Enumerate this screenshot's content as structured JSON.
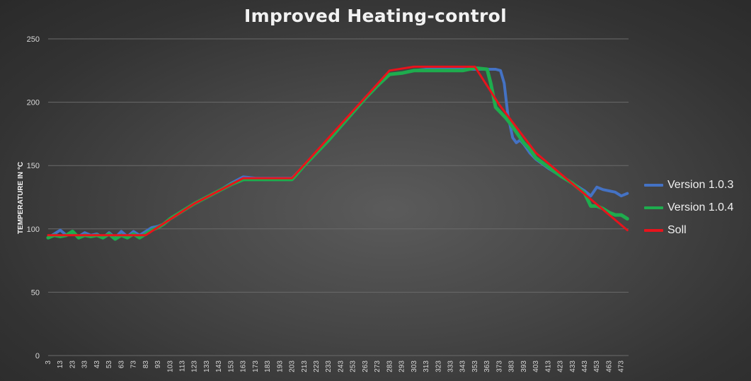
{
  "chart_data": {
    "type": "line",
    "title": "Improved Heating-control",
    "xlabel": "",
    "ylabel": "TEMPERATURE IN °C",
    "ylim": [
      0,
      250
    ],
    "yticks": [
      0,
      50,
      100,
      150,
      200,
      250
    ],
    "xlim": [
      3,
      479
    ],
    "xticks": [
      3,
      13,
      23,
      33,
      43,
      53,
      63,
      73,
      83,
      93,
      103,
      113,
      123,
      133,
      143,
      153,
      163,
      173,
      183,
      193,
      203,
      213,
      223,
      233,
      243,
      253,
      263,
      273,
      283,
      293,
      303,
      313,
      323,
      333,
      343,
      353,
      363,
      373,
      383,
      393,
      403,
      413,
      423,
      433,
      443,
      453,
      463,
      473
    ],
    "grid": true,
    "legend_position": "right",
    "series": [
      {
        "name": "Version 1.0.3",
        "color": "#4472c4",
        "points": [
          [
            3,
            93
          ],
          [
            8,
            96
          ],
          [
            13,
            99
          ],
          [
            18,
            95
          ],
          [
            23,
            97
          ],
          [
            28,
            94
          ],
          [
            33,
            97
          ],
          [
            38,
            95
          ],
          [
            43,
            96
          ],
          [
            48,
            93
          ],
          [
            53,
            97
          ],
          [
            58,
            93
          ],
          [
            63,
            98
          ],
          [
            68,
            94
          ],
          [
            73,
            98
          ],
          [
            78,
            95
          ],
          [
            83,
            98
          ],
          [
            88,
            101
          ],
          [
            93,
            102
          ],
          [
            98,
            104
          ],
          [
            103,
            108
          ],
          [
            113,
            114
          ],
          [
            123,
            120
          ],
          [
            133,
            125
          ],
          [
            143,
            130
          ],
          [
            153,
            136
          ],
          [
            163,
            141
          ],
          [
            173,
            140
          ],
          [
            183,
            140
          ],
          [
            193,
            140
          ],
          [
            203,
            140
          ],
          [
            213,
            150
          ],
          [
            223,
            160
          ],
          [
            233,
            170
          ],
          [
            243,
            181
          ],
          [
            253,
            192
          ],
          [
            263,
            203
          ],
          [
            273,
            213
          ],
          [
            283,
            222
          ],
          [
            293,
            223
          ],
          [
            303,
            225
          ],
          [
            313,
            226
          ],
          [
            323,
            226
          ],
          [
            333,
            226
          ],
          [
            343,
            226
          ],
          [
            353,
            226
          ],
          [
            363,
            226
          ],
          [
            370,
            226
          ],
          [
            374,
            225
          ],
          [
            377,
            215
          ],
          [
            380,
            190
          ],
          [
            384,
            172
          ],
          [
            387,
            168
          ],
          [
            390,
            170
          ],
          [
            393,
            167
          ],
          [
            398,
            160
          ],
          [
            403,
            155
          ],
          [
            413,
            148
          ],
          [
            423,
            142
          ],
          [
            433,
            136
          ],
          [
            443,
            130
          ],
          [
            448,
            126
          ],
          [
            453,
            133
          ],
          [
            458,
            131
          ],
          [
            463,
            130
          ],
          [
            468,
            129
          ],
          [
            473,
            126
          ],
          [
            478,
            128
          ]
        ]
      },
      {
        "name": "Version 1.0.4",
        "color": "#1eac4e",
        "points": [
          [
            3,
            93
          ],
          [
            8,
            95
          ],
          [
            13,
            94
          ],
          [
            18,
            95
          ],
          [
            23,
            98
          ],
          [
            28,
            93
          ],
          [
            33,
            95
          ],
          [
            38,
            94
          ],
          [
            43,
            95
          ],
          [
            48,
            93
          ],
          [
            53,
            96
          ],
          [
            58,
            92
          ],
          [
            63,
            95
          ],
          [
            68,
            93
          ],
          [
            73,
            96
          ],
          [
            78,
            93
          ],
          [
            83,
            96
          ],
          [
            88,
            99
          ],
          [
            93,
            101
          ],
          [
            98,
            104
          ],
          [
            103,
            108
          ],
          [
            113,
            114
          ],
          [
            123,
            120
          ],
          [
            133,
            125
          ],
          [
            143,
            130
          ],
          [
            153,
            135
          ],
          [
            163,
            139
          ],
          [
            173,
            139
          ],
          [
            183,
            139
          ],
          [
            193,
            139
          ],
          [
            203,
            139
          ],
          [
            213,
            150
          ],
          [
            223,
            160
          ],
          [
            233,
            170
          ],
          [
            243,
            181
          ],
          [
            253,
            192
          ],
          [
            263,
            203
          ],
          [
            273,
            213
          ],
          [
            283,
            222
          ],
          [
            293,
            223
          ],
          [
            303,
            225
          ],
          [
            313,
            225
          ],
          [
            323,
            225
          ],
          [
            333,
            225
          ],
          [
            343,
            225
          ],
          [
            353,
            227
          ],
          [
            363,
            226
          ],
          [
            366,
            215
          ],
          [
            370,
            196
          ],
          [
            373,
            193
          ],
          [
            378,
            188
          ],
          [
            383,
            182
          ],
          [
            388,
            175
          ],
          [
            393,
            168
          ],
          [
            398,
            163
          ],
          [
            403,
            156
          ],
          [
            413,
            149
          ],
          [
            423,
            142
          ],
          [
            433,
            136
          ],
          [
            443,
            128
          ],
          [
            448,
            118
          ],
          [
            453,
            118
          ],
          [
            458,
            116
          ],
          [
            463,
            113
          ],
          [
            468,
            111
          ],
          [
            473,
            111
          ],
          [
            478,
            108
          ]
        ]
      },
      {
        "name": "Soll",
        "color": "#e8131c",
        "points": [
          [
            3,
            95
          ],
          [
            83,
            95
          ],
          [
            123,
            120
          ],
          [
            163,
            140
          ],
          [
            203,
            140
          ],
          [
            283,
            225
          ],
          [
            303,
            228
          ],
          [
            353,
            228
          ],
          [
            363,
            213
          ],
          [
            373,
            198
          ],
          [
            403,
            160
          ],
          [
            478,
            99
          ]
        ]
      }
    ]
  }
}
